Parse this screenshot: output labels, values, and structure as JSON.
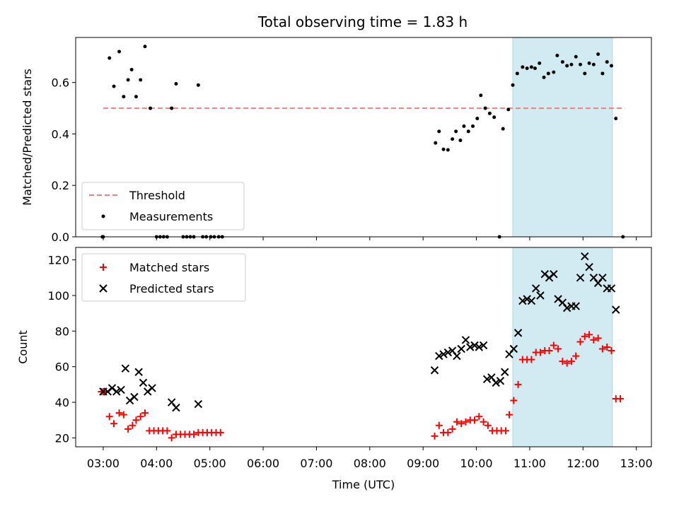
{
  "title": "Total observing time = 1.83 h",
  "chart_data": [
    {
      "type": "scatter",
      "ylabel": "Matched/Predicted stars",
      "ylim": [
        0,
        0.775
      ],
      "yticks": [
        "0.0",
        "0.2",
        "0.4",
        "0.6"
      ],
      "threshold": {
        "name": "Threshold",
        "value": 0.5,
        "x_start": "03:00",
        "x_end": "12:47",
        "color": "#f08080"
      },
      "measurements": {
        "name": "Measurements",
        "color": "#000000",
        "points": [
          [
            "02:59",
            0.0
          ],
          [
            "03:00",
            0.0
          ],
          [
            "03:07",
            0.695
          ],
          [
            "03:12",
            0.585
          ],
          [
            "03:18",
            0.72
          ],
          [
            "03:23",
            0.545
          ],
          [
            "03:28",
            0.61
          ],
          [
            "03:32",
            0.65
          ],
          [
            "03:37",
            0.545
          ],
          [
            "03:42",
            0.61
          ],
          [
            "03:47",
            0.74
          ],
          [
            "03:53",
            0.5
          ],
          [
            "04:00",
            0.0
          ],
          [
            "04:04",
            0.0
          ],
          [
            "04:08",
            0.0
          ],
          [
            "04:12",
            0.0
          ],
          [
            "04:17",
            0.5
          ],
          [
            "04:22",
            0.595
          ],
          [
            "04:30",
            0.0
          ],
          [
            "04:34",
            0.0
          ],
          [
            "04:38",
            0.0
          ],
          [
            "04:42",
            0.0
          ],
          [
            "04:47",
            0.59
          ],
          [
            "04:52",
            0.0
          ],
          [
            "04:56",
            0.0
          ],
          [
            "05:01",
            0.0
          ],
          [
            "05:05",
            0.0
          ],
          [
            "05:10",
            0.0
          ],
          [
            "05:14",
            0.0
          ],
          [
            "09:14",
            0.365
          ],
          [
            "09:18",
            0.41
          ],
          [
            "09:23",
            0.34
          ],
          [
            "09:28",
            0.338
          ],
          [
            "09:33",
            0.38
          ],
          [
            "09:37",
            0.41
          ],
          [
            "09:42",
            0.375
          ],
          [
            "09:46",
            0.43
          ],
          [
            "09:51",
            0.41
          ],
          [
            "09:56",
            0.43
          ],
          [
            "10:01",
            0.46
          ],
          [
            "10:05",
            0.55
          ],
          [
            "10:10",
            0.5
          ],
          [
            "10:15",
            0.48
          ],
          [
            "10:20",
            0.465
          ],
          [
            "10:26",
            0.0
          ],
          [
            "10:30",
            0.42
          ],
          [
            "10:36",
            0.495
          ],
          [
            "10:41",
            0.59
          ],
          [
            "10:46",
            0.635
          ],
          [
            "10:52",
            0.66
          ],
          [
            "10:57",
            0.655
          ],
          [
            "11:02",
            0.66
          ],
          [
            "11:06",
            0.655
          ],
          [
            "11:11",
            0.675
          ],
          [
            "11:16",
            0.62
          ],
          [
            "11:21",
            0.635
          ],
          [
            "11:27",
            0.64
          ],
          [
            "11:31",
            0.705
          ],
          [
            "11:37",
            0.68
          ],
          [
            "11:42",
            0.665
          ],
          [
            "11:47",
            0.67
          ],
          [
            "11:52",
            0.7
          ],
          [
            "11:57",
            0.67
          ],
          [
            "12:02",
            0.635
          ],
          [
            "12:07",
            0.675
          ],
          [
            "12:12",
            0.67
          ],
          [
            "12:17",
            0.71
          ],
          [
            "12:22",
            0.635
          ],
          [
            "12:27",
            0.68
          ],
          [
            "12:32",
            0.665
          ],
          [
            "12:37",
            0.46
          ],
          [
            "12:45",
            0.0
          ]
        ]
      },
      "legend": [
        "Threshold",
        "Measurements"
      ],
      "legend_position": "lower-left"
    },
    {
      "type": "scatter",
      "xlabel": "Time (UTC)",
      "ylabel": "Count",
      "ylim": [
        15,
        127
      ],
      "yticks": [
        "20",
        "40",
        "60",
        "80",
        "100",
        "120"
      ],
      "xticks": [
        "03:00",
        "04:00",
        "05:00",
        "06:00",
        "07:00",
        "08:00",
        "09:00",
        "10:00",
        "11:00",
        "12:00",
        "13:00"
      ],
      "series": [
        {
          "name": "Matched stars",
          "marker": "plus",
          "color": "#ff0000",
          "points": [
            [
              "02:58",
              46
            ],
            [
              "03:00",
              46
            ],
            [
              "03:07",
              32
            ],
            [
              "03:12",
              28
            ],
            [
              "03:18",
              34
            ],
            [
              "03:23",
              33
            ],
            [
              "03:28",
              25
            ],
            [
              "03:33",
              27
            ],
            [
              "03:37",
              30
            ],
            [
              "03:42",
              32
            ],
            [
              "03:47",
              34
            ],
            [
              "03:52",
              24
            ],
            [
              "03:57",
              24
            ],
            [
              "04:02",
              24
            ],
            [
              "04:07",
              24
            ],
            [
              "04:12",
              24
            ],
            [
              "04:17",
              20
            ],
            [
              "04:22",
              22
            ],
            [
              "04:27",
              22
            ],
            [
              "04:32",
              22
            ],
            [
              "04:37",
              22
            ],
            [
              "04:42",
              22
            ],
            [
              "04:47",
              23
            ],
            [
              "04:52",
              23
            ],
            [
              "04:57",
              23
            ],
            [
              "05:02",
              23
            ],
            [
              "05:07",
              23
            ],
            [
              "05:12",
              23
            ],
            [
              "09:13",
              21
            ],
            [
              "09:18",
              27
            ],
            [
              "09:23",
              23
            ],
            [
              "09:28",
              23
            ],
            [
              "09:33",
              25
            ],
            [
              "09:38",
              29
            ],
            [
              "09:43",
              28
            ],
            [
              "09:48",
              29
            ],
            [
              "09:53",
              30
            ],
            [
              "09:58",
              30
            ],
            [
              "10:03",
              32
            ],
            [
              "10:08",
              29
            ],
            [
              "10:13",
              27
            ],
            [
              "10:18",
              24
            ],
            [
              "10:23",
              24
            ],
            [
              "10:28",
              24
            ],
            [
              "10:33",
              24
            ],
            [
              "10:37",
              33
            ],
            [
              "10:42",
              41
            ],
            [
              "10:47",
              50
            ],
            [
              "10:52",
              64
            ],
            [
              "10:57",
              64
            ],
            [
              "11:02",
              64
            ],
            [
              "11:07",
              68
            ],
            [
              "11:12",
              68
            ],
            [
              "11:17",
              69
            ],
            [
              "11:22",
              69
            ],
            [
              "11:27",
              72
            ],
            [
              "11:32",
              70
            ],
            [
              "11:37",
              63
            ],
            [
              "11:42",
              62
            ],
            [
              "11:47",
              63
            ],
            [
              "11:52",
              66
            ],
            [
              "11:57",
              74
            ],
            [
              "12:02",
              77
            ],
            [
              "12:07",
              78
            ],
            [
              "12:12",
              75
            ],
            [
              "12:17",
              76
            ],
            [
              "12:22",
              70
            ],
            [
              "12:27",
              71
            ],
            [
              "12:32",
              69
            ],
            [
              "12:37",
              42
            ],
            [
              "12:42",
              42
            ]
          ]
        },
        {
          "name": "Predicted stars",
          "marker": "x",
          "color": "#000000",
          "points": [
            [
              "03:00",
              46
            ],
            [
              "03:05",
              46
            ],
            [
              "03:10",
              48
            ],
            [
              "03:15",
              46
            ],
            [
              "03:20",
              47
            ],
            [
              "03:25",
              59
            ],
            [
              "03:30",
              41
            ],
            [
              "03:35",
              43
            ],
            [
              "03:40",
              57
            ],
            [
              "03:45",
              51
            ],
            [
              "03:50",
              46
            ],
            [
              "03:55",
              48
            ],
            [
              "04:17",
              40
            ],
            [
              "04:22",
              37
            ],
            [
              "04:47",
              39
            ],
            [
              "09:13",
              58
            ],
            [
              "09:18",
              66
            ],
            [
              "09:23",
              67
            ],
            [
              "09:28",
              68
            ],
            [
              "09:33",
              69
            ],
            [
              "09:38",
              66
            ],
            [
              "09:43",
              70
            ],
            [
              "09:48",
              75
            ],
            [
              "09:53",
              71
            ],
            [
              "09:58",
              72
            ],
            [
              "10:03",
              71
            ],
            [
              "10:08",
              72
            ],
            [
              "10:12",
              53
            ],
            [
              "10:17",
              54
            ],
            [
              "10:22",
              51
            ],
            [
              "10:27",
              52
            ],
            [
              "10:32",
              57
            ],
            [
              "10:37",
              67
            ],
            [
              "10:42",
              70
            ],
            [
              "10:47",
              79
            ],
            [
              "10:52",
              97
            ],
            [
              "10:57",
              98
            ],
            [
              "11:02",
              97
            ],
            [
              "11:07",
              104
            ],
            [
              "11:12",
              100
            ],
            [
              "11:17",
              112
            ],
            [
              "11:22",
              110
            ],
            [
              "11:27",
              112
            ],
            [
              "11:32",
              98
            ],
            [
              "11:37",
              96
            ],
            [
              "11:42",
              93
            ],
            [
              "11:47",
              94
            ],
            [
              "11:52",
              94
            ],
            [
              "11:57",
              110
            ],
            [
              "12:02",
              122
            ],
            [
              "12:07",
              116
            ],
            [
              "12:12",
              110
            ],
            [
              "12:17",
              107
            ],
            [
              "12:22",
              110
            ],
            [
              "12:27",
              104
            ],
            [
              "12:32",
              104
            ],
            [
              "12:37",
              92
            ]
          ]
        }
      ],
      "legend": [
        "Matched stars",
        "Predicted stars"
      ],
      "legend_position": "upper-left"
    }
  ],
  "highlight": {
    "start": "10:41",
    "end": "12:33",
    "color": "#add8e6"
  }
}
